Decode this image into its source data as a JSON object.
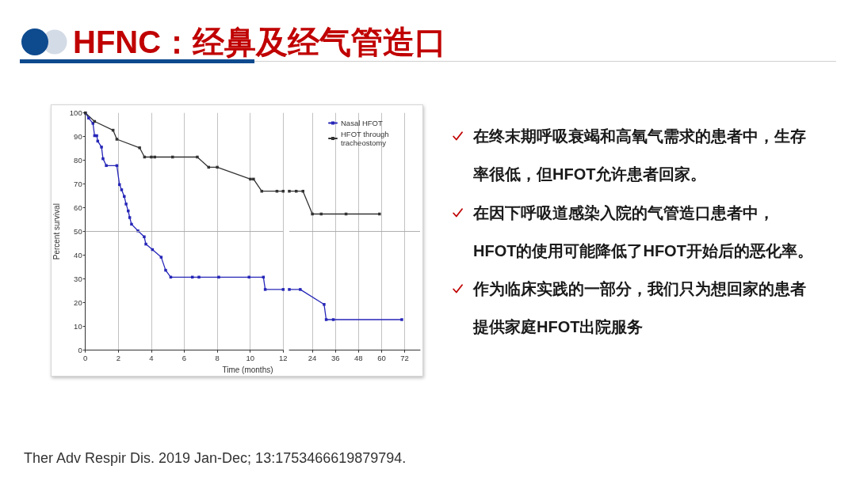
{
  "chart_data": [
    {
      "type": "line",
      "title": "HFNC：经鼻及经气管造口",
      "xlabel": "Time (months)",
      "ylabel": "Percent survival",
      "xlim": [
        0,
        12
      ],
      "xticks": [
        0,
        2,
        4,
        6,
        8,
        10,
        12
      ],
      "ylim": [
        0,
        100
      ],
      "yticks": [
        0,
        10,
        20,
        30,
        40,
        50,
        60,
        70,
        80,
        90,
        100
      ],
      "grid": "x",
      "marker": "square",
      "ref_lines": [
        {
          "axis": "y",
          "value": 50,
          "color": "#a6a6a6"
        }
      ],
      "series": [
        {
          "color": "#2626b8",
          "x": [
            0,
            0.2,
            0.46,
            0.56,
            0.69,
            0.75,
            0.98,
            1.07,
            1.27,
            1.91,
            2.07,
            2.2,
            2.36,
            2.47,
            2.6,
            2.69,
            2.8,
            3.19,
            3.57,
            3.67,
            4.07,
            4.6,
            4.87,
            5.18,
            6.49,
            6.89,
            8.09,
            9.93,
            10.8,
            10.91,
            12
          ],
          "values": [
            100,
            97.8,
            95.6,
            90.4,
            90.4,
            88.1,
            85.6,
            80.7,
            77.8,
            77.8,
            69.8,
            67.6,
            64.8,
            61.6,
            58.7,
            55.9,
            53.1,
            50.3,
            47.8,
            44.7,
            42.4,
            39.2,
            33.7,
            30.8,
            30.8,
            30.8,
            30.8,
            30.8,
            30.8,
            25.6,
            25.6
          ]
        },
        {
          "color": "#333333",
          "x": [
            0,
            0.56,
            1.68,
            1.91,
            3.29,
            3.59,
            4.0,
            4.21,
            5.29,
            6.79,
            7.48,
            8.0,
            10.01,
            10.2,
            10.7,
            11.62,
            12
          ],
          "values": [
            100,
            96.4,
            92.7,
            88.9,
            85.3,
            81.4,
            81.4,
            81.4,
            81.4,
            81.4,
            77.1,
            77.1,
            72.1,
            72.1,
            67,
            67,
            67
          ]
        }
      ],
      "annotations": [
        "在终末期呼吸衰竭和高氧气需求的患者中，生存率很低，但HFOT允许患者回家。",
        "在因下呼吸道感染入院的气管造口患者中，HFOT的使用可能降低了HFOT开始后的恶化率。",
        "作为临床实践的一部分，我们只为想回家的患者提供家庭HFOT出院服务",
        "Ther Adv Respir Dis. 2019 Jan-Dec; 13:1753466619879794."
      ]
    },
    {
      "type": "line",
      "xlim": [
        12,
        80
      ],
      "xticks": [
        24,
        36,
        48,
        60,
        72
      ],
      "ylim": [
        0,
        100
      ],
      "tick_labels": "x",
      "grid": "x",
      "marker": "square",
      "legend": "top right",
      "ref_lines": [
        {
          "axis": "y",
          "value": 50,
          "color": "#a6a6a6"
        }
      ],
      "series": [
        {
          "name": "Nasal HFOT",
          "color": "#2626b8",
          "x": [
            12,
            17.7,
            30.1,
            31.2,
            34.9,
            70.5
          ],
          "values": [
            25.6,
            25.6,
            19.3,
            12.9,
            12.9,
            12.9
          ]
        },
        {
          "name": "HFOT through tracheostomy",
          "color": "#333333",
          "x": [
            12,
            15.6,
            19.1,
            24,
            28.6,
            41.5,
            58.9
          ],
          "values": [
            67,
            67,
            67,
            57.4,
            57.4,
            57.4,
            57.4
          ]
        }
      ]
    }
  ]
}
